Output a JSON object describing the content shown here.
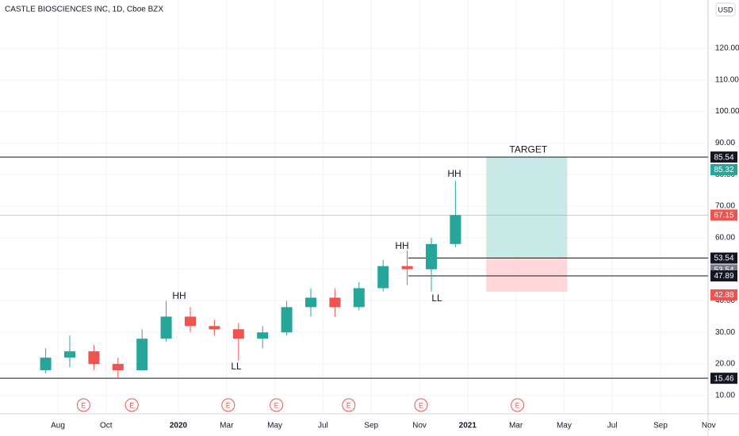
{
  "chart_data": {
    "type": "candlestick",
    "title": "CASTLE BIOSCIENCES INC, 1D, Cboe BZX",
    "currency": "USD",
    "x": [
      "2019-07",
      "2019-08",
      "2019-09",
      "2019-10",
      "2019-11",
      "2019-12",
      "2020-01",
      "2020-02",
      "2020-03",
      "2020-04",
      "2020-05",
      "2020-06",
      "2020-07",
      "2020-08",
      "2020-09",
      "2020-10",
      "2020-11",
      "2020-12"
    ],
    "open": [
      18,
      22,
      24,
      20,
      18,
      28,
      35,
      32,
      31,
      28,
      30,
      38,
      41,
      38,
      44,
      51,
      50,
      58
    ],
    "high": [
      25,
      29,
      26,
      22,
      31,
      40,
      38,
      34,
      33,
      32,
      40,
      44,
      44,
      46,
      53,
      56,
      60,
      78
    ],
    "low": [
      17,
      19,
      18,
      15.5,
      18,
      27,
      30,
      29,
      21,
      25,
      29,
      35,
      35,
      37,
      43,
      45,
      43,
      57
    ],
    "close": [
      22,
      24,
      20,
      18,
      28,
      35,
      32,
      31,
      28,
      30,
      38,
      41,
      38,
      44,
      51,
      50,
      58,
      67.15
    ],
    "up_color": "#26a69a",
    "down_color": "#ef5350",
    "xticks": [
      {
        "value": "2019-08",
        "label": "Aug"
      },
      {
        "value": "2019-10",
        "label": "Oct"
      },
      {
        "value": "2020-01",
        "label": "2020"
      },
      {
        "value": "2020-03",
        "label": "Mar"
      },
      {
        "value": "2020-05",
        "label": "May"
      },
      {
        "value": "2020-07",
        "label": "Jul"
      },
      {
        "value": "2020-09",
        "label": "Sep"
      },
      {
        "value": "2020-11",
        "label": "Nov"
      },
      {
        "value": "2021-01",
        "label": "2021"
      },
      {
        "value": "2021-03",
        "label": "Mar"
      },
      {
        "value": "2021-05",
        "label": "May"
      },
      {
        "value": "2021-07",
        "label": "Jul"
      },
      {
        "value": "2021-09",
        "label": "Sep"
      },
      {
        "value": "2021-11",
        "label": "Nov"
      }
    ],
    "ylim": [
      4.2,
      135.3
    ],
    "yticks": [
      {
        "value": 10,
        "label": "10.00"
      },
      {
        "value": 20,
        "label": "20.00"
      },
      {
        "value": 30,
        "label": "30.00"
      },
      {
        "value": 40,
        "label": "40.00"
      },
      {
        "value": 50,
        "label": "50.00"
      },
      {
        "value": 60,
        "label": "60.00"
      },
      {
        "value": 70,
        "label": "70.00"
      },
      {
        "value": 80,
        "label": "80.00"
      },
      {
        "value": 90,
        "label": "90.00"
      },
      {
        "value": 100,
        "label": "100.00"
      },
      {
        "value": 110,
        "label": "110.00"
      },
      {
        "value": 120,
        "label": "120.00"
      }
    ],
    "grid": true,
    "levels": [
      85.54,
      53.54,
      47.89,
      15.46
    ],
    "last_price": {
      "value": 67.15,
      "color": "#ef5350"
    },
    "position": {
      "target": 85.54,
      "entry": 53.54,
      "stop": 42.88,
      "from": "2021-02",
      "to": "2021-05",
      "profit_color": "#b2dfdb",
      "loss_color": "#ffcdd2",
      "label": "TARGET"
    },
    "price_labels": [
      {
        "value": 85.54,
        "color": "#131722"
      },
      {
        "value": 85.32,
        "color": "#26a69a"
      },
      {
        "value": 67.15,
        "color": "#ef5350"
      },
      {
        "value": 53.54,
        "color": "#131722"
      },
      {
        "value": 53.54,
        "color": "#787b86"
      },
      {
        "value": 47.89,
        "color": "#131722"
      },
      {
        "value": 42.88,
        "color": "#ef5350"
      },
      {
        "value": 15.46,
        "color": "#131722"
      }
    ],
    "annotations": [
      "HH",
      "LL",
      "HH",
      "LL",
      "HH"
    ],
    "earnings": {
      "label": "E",
      "x": [
        "2019-09",
        "2019-11",
        "2020-03",
        "2020-05",
        "2020-08",
        "2020-11",
        "2021-03"
      ]
    }
  }
}
